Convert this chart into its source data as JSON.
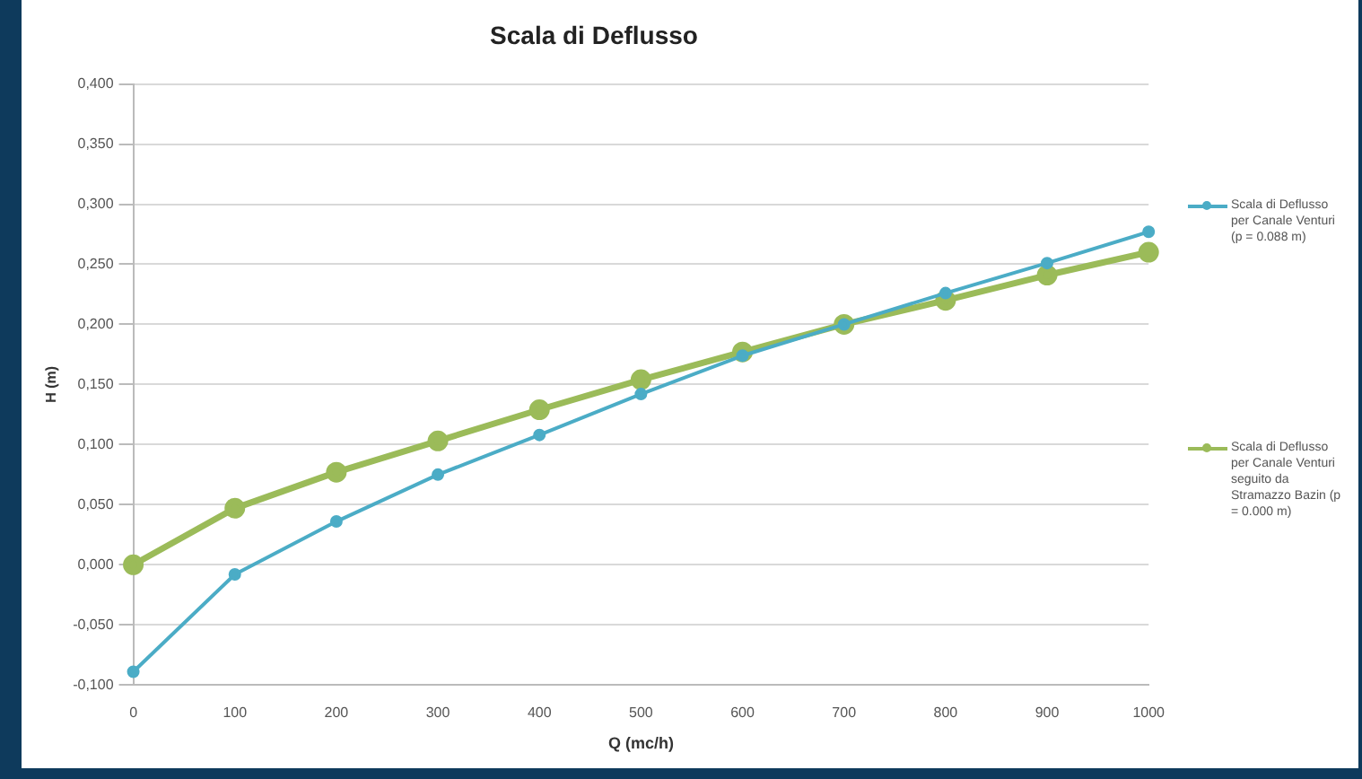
{
  "chart_data": {
    "type": "line",
    "title": "Scala di Deflusso",
    "xlabel": "Q (mc/h)",
    "ylabel": "H (m)",
    "categories": [
      "0",
      "100",
      "200",
      "300",
      "400",
      "500",
      "600",
      "700",
      "800",
      "900",
      "1000"
    ],
    "series": [
      {
        "name": "Scala di Deflusso per Canale Venturi (p = 0.088 m)",
        "color": "#4bacc6",
        "values": [
          -0.089,
          -0.008,
          0.036,
          0.075,
          0.108,
          0.142,
          0.174,
          0.2,
          0.226,
          0.251,
          0.277
        ]
      },
      {
        "name": "Scala di Deflusso per Canale Venturi seguito da Stramazzo Bazin (p = 0.000 m)",
        "color": "#9bbb59",
        "values": [
          0.0,
          0.047,
          0.077,
          0.103,
          0.129,
          0.154,
          0.177,
          0.2,
          0.22,
          0.241,
          0.26
        ]
      }
    ],
    "ylim": [
      -0.1,
      0.4
    ],
    "yticks": [
      {
        "value": -0.1,
        "label": "-0,100"
      },
      {
        "value": -0.05,
        "label": "-0,050"
      },
      {
        "value": 0,
        "label": "0,000"
      },
      {
        "value": 0.05,
        "label": "0,050"
      },
      {
        "value": 0.1,
        "label": "0,100"
      },
      {
        "value": 0.15,
        "label": "0,150"
      },
      {
        "value": 0.2,
        "label": "0,200"
      },
      {
        "value": 0.25,
        "label": "0,250"
      },
      {
        "value": 0.3,
        "label": "0,300"
      },
      {
        "value": 0.35,
        "label": "0,350"
      },
      {
        "value": 0.4,
        "label": "0,400"
      }
    ],
    "grid": "y",
    "legend": "right",
    "marker": "circle",
    "line_style": "solid"
  }
}
